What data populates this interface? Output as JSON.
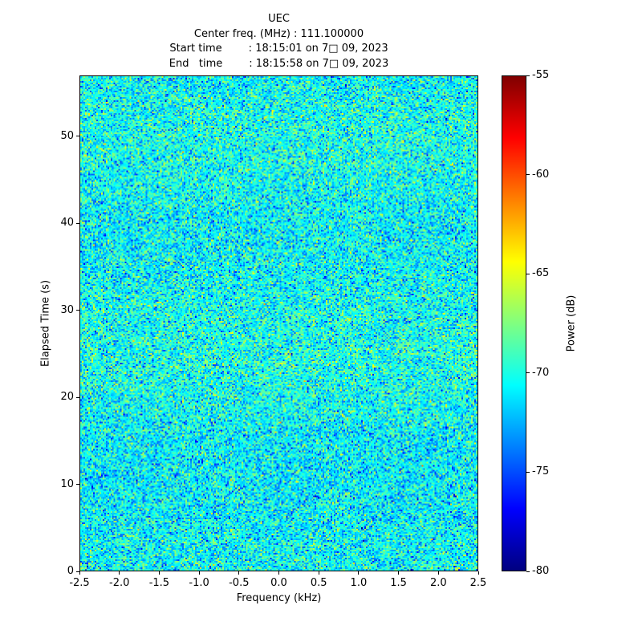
{
  "chart_data": {
    "type": "heatmap",
    "title": "UEC",
    "subtitle_lines": [
      "Center freq. (MHz) : 111.100000",
      "Start time        : 18:15:01 on 7□ 09, 2023",
      "End   time        : 18:15:58 on 7□ 09, 2023"
    ],
    "xlabel": "Frequency (kHz)",
    "ylabel": "Elapsed Time (s)",
    "xlim": [
      -2.5,
      2.5
    ],
    "ylim": [
      0,
      57
    ],
    "xticks": [
      -2.5,
      -2.0,
      -1.5,
      -1.0,
      -0.5,
      0.0,
      0.5,
      1.0,
      1.5,
      2.0,
      2.5
    ],
    "xtick_labels": [
      "-2.5",
      "-2.0",
      "-1.5",
      "-1.0",
      "-0.5",
      "0.0",
      "0.5",
      "1.0",
      "1.5",
      "2.0",
      "2.5"
    ],
    "yticks": [
      0,
      10,
      20,
      30,
      40,
      50
    ],
    "ytick_labels": [
      "0",
      "10",
      "20",
      "30",
      "40",
      "50"
    ],
    "grid": false,
    "colorbar": {
      "label": "Power (dB)",
      "vmin": -80,
      "vmax": -55,
      "ticks": [
        -55,
        -60,
        -65,
        -70,
        -75,
        -80
      ],
      "tick_labels": [
        "-55",
        "-60",
        "-65",
        "-70",
        "-75",
        "-80"
      ],
      "colormap": "jet",
      "position": "right"
    },
    "noise": {
      "description": "broadband random noise floor, no visible signal",
      "mean_db": -70.6,
      "std_db": 2.2,
      "rows": 309,
      "cols": 249,
      "seed": 1234
    }
  }
}
